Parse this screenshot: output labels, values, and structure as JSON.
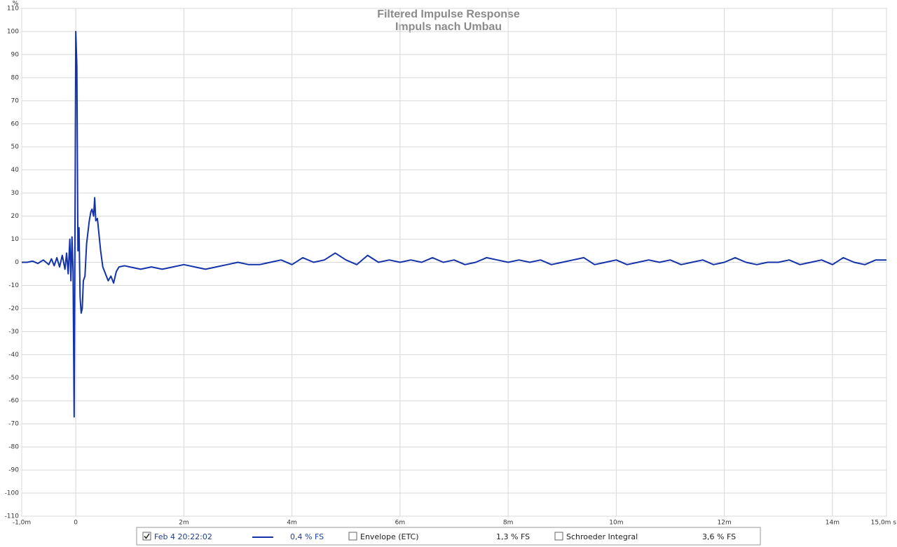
{
  "chart_data": {
    "type": "line",
    "title": "Filtered Impulse Response",
    "subtitle": "Impuls nach Umbau",
    "y_unit": "%",
    "grid": true,
    "xlim": [
      -1,
      15
    ],
    "ylim": [
      -110,
      110
    ],
    "xticks": [
      {
        "value": -1,
        "label": "-1,0m"
      },
      0,
      {
        "value": 2,
        "label": "2m"
      },
      {
        "value": 4,
        "label": "4m"
      },
      {
        "value": 6,
        "label": "6m"
      },
      {
        "value": 8,
        "label": "8m"
      },
      {
        "value": 10,
        "label": "10m"
      },
      {
        "value": 12,
        "label": "12m"
      },
      {
        "value": 14,
        "label": "14m"
      },
      {
        "value": 15,
        "label": "15,0m s"
      }
    ],
    "yticks": [
      -110,
      -100,
      -90,
      -80,
      -70,
      -60,
      -50,
      -40,
      -30,
      -20,
      -10,
      0,
      10,
      20,
      30,
      40,
      50,
      60,
      70,
      80,
      90,
      100,
      110
    ],
    "x": [
      -1.0,
      -0.9,
      -0.8,
      -0.7,
      -0.6,
      -0.5,
      -0.45,
      -0.4,
      -0.35,
      -0.3,
      -0.25,
      -0.2,
      -0.17,
      -0.14,
      -0.11,
      -0.09,
      -0.07,
      -0.05,
      -0.03,
      -0.01,
      0,
      0.02,
      0.04,
      0.06,
      0.08,
      0.1,
      0.12,
      0.14,
      0.17,
      0.2,
      0.22,
      0.25,
      0.28,
      0.3,
      0.33,
      0.35,
      0.37,
      0.4,
      0.43,
      0.46,
      0.5,
      0.55,
      0.6,
      0.65,
      0.7,
      0.75,
      0.8,
      0.9,
      1.0,
      1.2,
      1.4,
      1.6,
      1.8,
      2.0,
      2.2,
      2.4,
      2.6,
      2.8,
      3.0,
      3.2,
      3.4,
      3.6,
      3.8,
      4.0,
      4.2,
      4.4,
      4.6,
      4.8,
      5.0,
      5.2,
      5.4,
      5.6,
      5.8,
      6.0,
      6.2,
      6.4,
      6.6,
      6.8,
      7.0,
      7.2,
      7.4,
      7.6,
      7.8,
      8.0,
      8.2,
      8.4,
      8.6,
      8.8,
      9.0,
      9.2,
      9.4,
      9.6,
      9.8,
      10.0,
      10.2,
      10.4,
      10.6,
      10.8,
      11.0,
      11.2,
      11.4,
      11.6,
      11.8,
      12.0,
      12.2,
      12.4,
      12.6,
      12.8,
      13.0,
      13.2,
      13.4,
      13.6,
      13.8,
      14.0,
      14.2,
      14.4,
      14.6,
      14.8,
      15.0
    ],
    "series": [
      {
        "name": "Feb 4 20:22:02",
        "color": "#1433a8",
        "level": "0,4 % FS",
        "checked": true,
        "values": [
          0,
          0,
          0.5,
          -0.5,
          1,
          -1,
          1.5,
          -1.5,
          2,
          -2,
          3,
          -3,
          4,
          -5,
          10,
          -8,
          11,
          -4,
          -67,
          40,
          100,
          85,
          5,
          15,
          -15,
          -22,
          -20,
          -8,
          -6,
          8,
          12,
          18,
          22,
          23,
          20,
          28,
          18,
          19,
          12,
          5,
          -2,
          -5,
          -8,
          -6,
          -9,
          -4,
          -2,
          -1.5,
          -2,
          -3,
          -2,
          -3,
          -2,
          -1,
          -2,
          -3,
          -2,
          -1,
          0,
          -1,
          -1,
          0,
          1,
          -1,
          2,
          0,
          1,
          4,
          1,
          -1,
          3,
          0,
          1,
          0,
          1,
          0,
          2,
          0,
          1,
          -1,
          0,
          2,
          1,
          0,
          1,
          0,
          1,
          -1,
          0,
          1,
          2,
          -1,
          0,
          1,
          -1,
          0,
          1,
          0,
          1,
          -1,
          0,
          1,
          -1,
          0,
          2,
          0,
          -1,
          0,
          0,
          1,
          -1,
          0,
          1,
          -1,
          2,
          0,
          -1,
          1,
          1
        ]
      }
    ],
    "extra_legend": [
      {
        "name": "Envelope (ETC)",
        "level": "1,3 % FS",
        "checked": false
      },
      {
        "name": "Schroeder Integral",
        "level": "3,6 % FS",
        "checked": false
      }
    ]
  }
}
